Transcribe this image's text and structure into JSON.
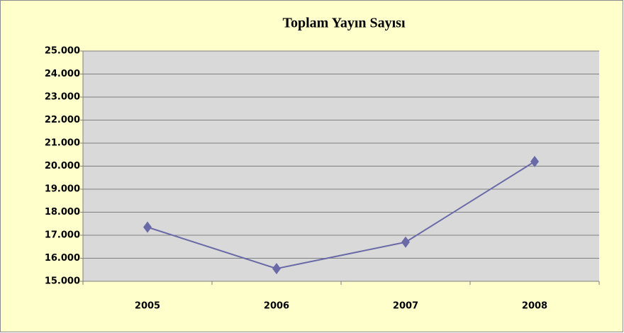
{
  "chart_data": {
    "type": "line",
    "title": "Toplam Yayın Sayısı",
    "categories": [
      "2005",
      "2006",
      "2007",
      "2008"
    ],
    "series": [
      {
        "color": "#6a6aa8",
        "values": [
          17350,
          15550,
          16700,
          20200
        ]
      }
    ],
    "ylim": [
      15000,
      25000
    ],
    "yticks": [
      {
        "value": 15000,
        "label": "15.000"
      },
      {
        "value": 16000,
        "label": "16.000"
      },
      {
        "value": 17000,
        "label": "17.000"
      },
      {
        "value": 18000,
        "label": "18.000"
      },
      {
        "value": 19000,
        "label": "19.000"
      },
      {
        "value": 20000,
        "label": "20.000"
      },
      {
        "value": 21000,
        "label": "21.000"
      },
      {
        "value": 22000,
        "label": "22.000"
      },
      {
        "value": 23000,
        "label": "23.000"
      },
      {
        "value": 24000,
        "label": "24.000"
      },
      {
        "value": 25000,
        "label": "25.000"
      }
    ],
    "grid": true
  }
}
